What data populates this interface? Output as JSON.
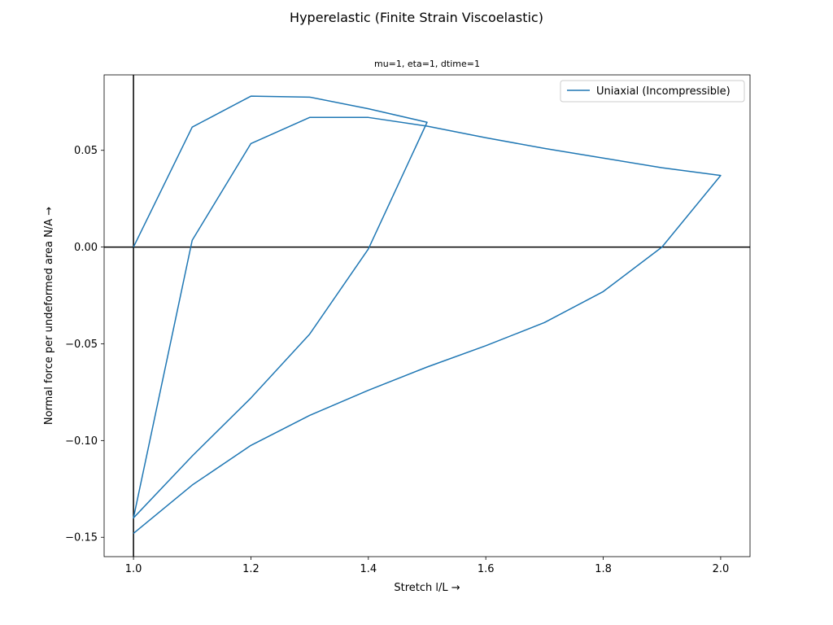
{
  "figure": {
    "title": "Hyperelastic (Finite Strain Viscoelastic)",
    "subtitle": "mu=1, eta=1, dtime=1"
  },
  "chart_data": {
    "type": "line",
    "xlabel": "Stretch l/L →",
    "ylabel": "Normal force per undeformed area N/A →",
    "xlim": [
      0.95,
      2.05
    ],
    "ylim": [
      -0.16,
      0.089
    ],
    "xticks": [
      "1.0",
      "1.2",
      "1.4",
      "1.6",
      "1.8",
      "2.0"
    ],
    "xtick_values": [
      1.0,
      1.2,
      1.4,
      1.6,
      1.8,
      2.0
    ],
    "yticks": [
      "−0.15",
      "−0.10",
      "−0.05",
      "0.00",
      "0.05"
    ],
    "ytick_values": [
      -0.15,
      -0.1,
      -0.05,
      0.0,
      0.05
    ],
    "grid": false,
    "reference_lines": {
      "x": 1.0,
      "y": 0.0
    },
    "legend_position": "upper-right",
    "series": [
      {
        "name": "Uniaxial (Incompressible)",
        "color": "#1f77b4",
        "x": [
          1.0,
          1.1,
          1.2,
          1.3,
          1.4,
          1.5,
          1.4,
          1.3,
          1.2,
          1.1,
          1.0,
          1.1,
          1.2,
          1.3,
          1.4,
          1.5,
          1.6,
          1.7,
          1.8,
          1.9,
          2.0,
          1.9,
          1.8,
          1.7,
          1.6,
          1.5,
          1.4,
          1.3,
          1.2,
          1.1,
          1.0
        ],
        "y": [
          0.0,
          0.062,
          0.078,
          0.0775,
          0.0715,
          0.0645,
          -0.001,
          -0.045,
          -0.078,
          -0.108,
          -0.14,
          0.0035,
          0.0535,
          0.067,
          0.067,
          0.0625,
          0.0565,
          0.051,
          0.046,
          0.041,
          0.037,
          0.0,
          -0.023,
          -0.039,
          -0.051,
          -0.062,
          -0.074,
          -0.087,
          -0.1025,
          -0.123,
          -0.148
        ]
      }
    ]
  }
}
